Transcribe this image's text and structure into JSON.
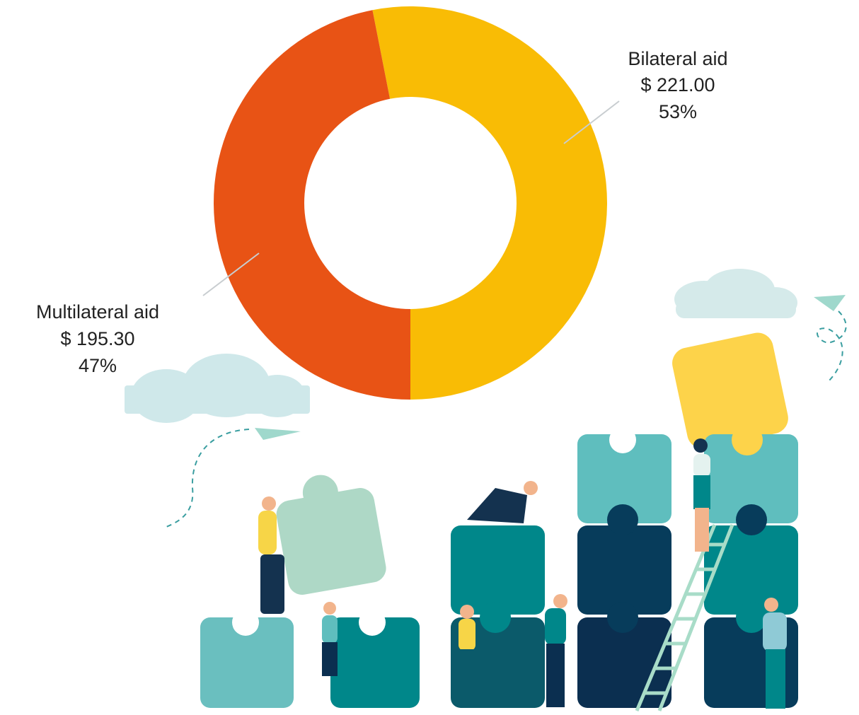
{
  "chart_data": {
    "type": "donut",
    "categories": [
      "Bilateral aid",
      "Multilateral aid"
    ],
    "values": [
      221.0,
      195.3
    ],
    "value_labels": [
      "$ 221.00",
      "$ 195.30"
    ],
    "shares": [
      53,
      47
    ],
    "share_labels": [
      "53%",
      "47%"
    ],
    "colors": [
      "#f9bc05",
      "#e85315"
    ]
  }
}
